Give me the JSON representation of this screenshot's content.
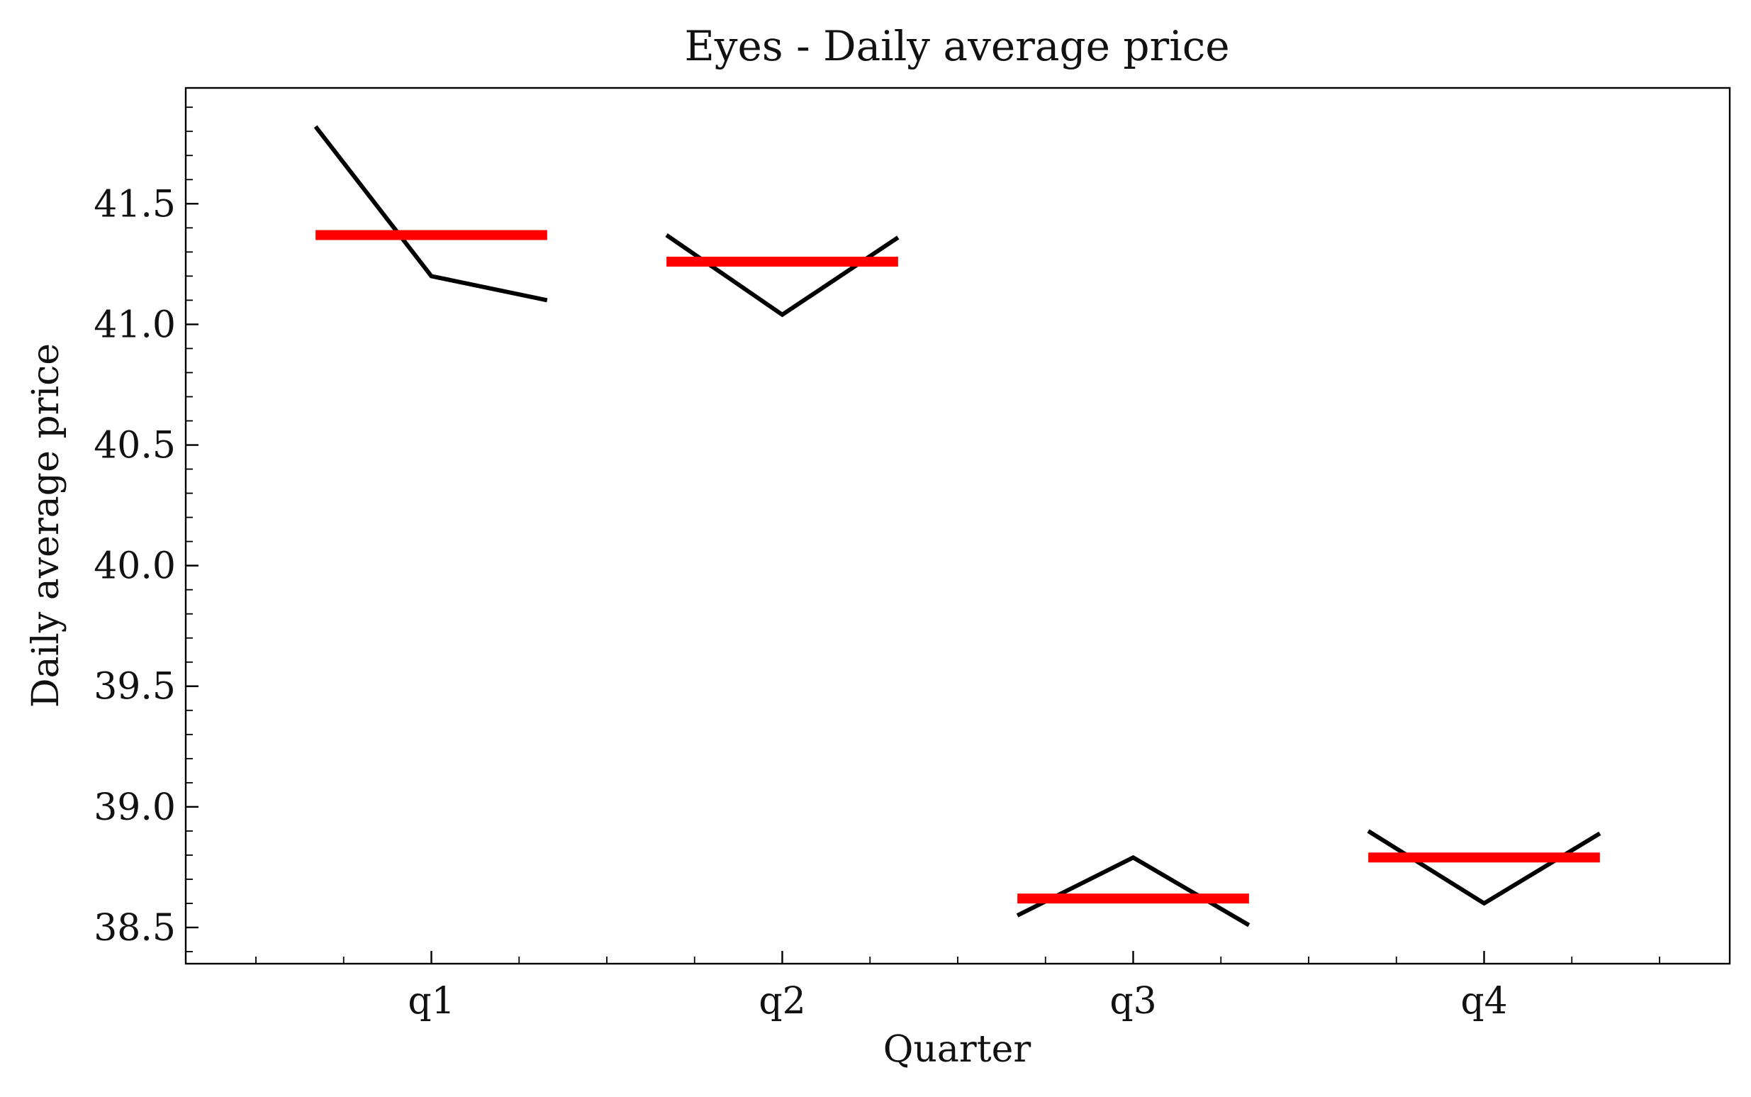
{
  "chart_data": {
    "type": "line",
    "title": "Eyes - Daily average price",
    "xlabel": "Quarter",
    "ylabel": "Daily average price",
    "categories": [
      "q1",
      "q2",
      "q3",
      "q4"
    ],
    "ylim": [
      38.35,
      41.98
    ],
    "yticks": [
      38.5,
      39.0,
      39.5,
      40.0,
      40.5,
      41.0,
      41.5
    ],
    "ytick_labels": [
      "38.5",
      "39.0",
      "39.5",
      "40.0",
      "40.5",
      "41.0",
      "41.5"
    ],
    "series": [
      {
        "kind": "monthly-line",
        "color": "#000000",
        "groups": [
          {
            "category": "q1",
            "values": [
              41.82,
              41.2,
              41.1
            ]
          },
          {
            "category": "q2",
            "values": [
              41.37,
              41.04,
              41.36
            ]
          },
          {
            "category": "q3",
            "values": [
              38.55,
              38.79,
              38.51
            ]
          },
          {
            "category": "q4",
            "values": [
              38.9,
              38.6,
              38.89
            ]
          }
        ]
      },
      {
        "kind": "quarter-mean",
        "color": "#ff0000",
        "values": [
          41.37,
          41.26,
          38.62,
          38.79
        ]
      }
    ],
    "grid": false,
    "legend": "none"
  }
}
